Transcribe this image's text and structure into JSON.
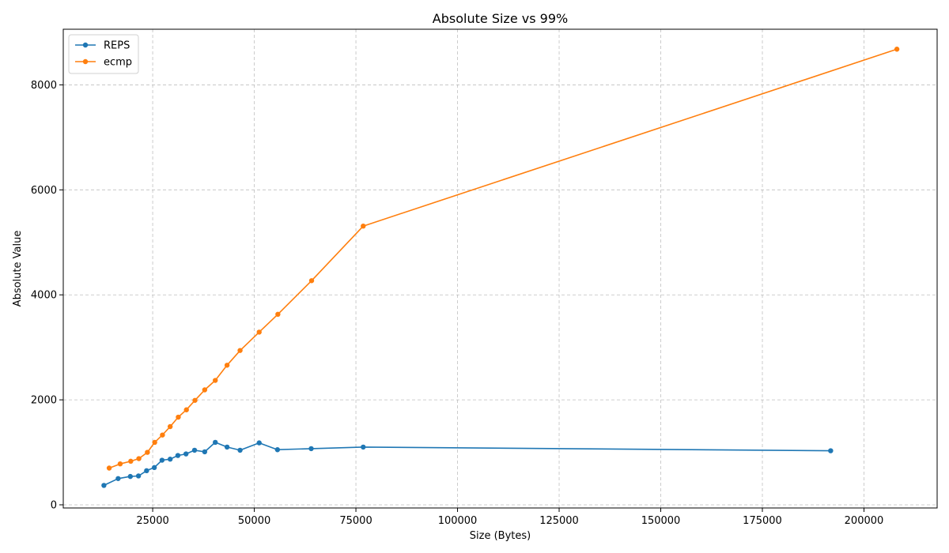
{
  "chart_data": {
    "type": "line",
    "title": "Absolute Size vs 99%",
    "xlabel": "Size (Bytes)",
    "ylabel": "Absolute Value",
    "xlim": [
      3000,
      218000
    ],
    "ylim": [
      -60,
      9060
    ],
    "xticks": [
      25000,
      50000,
      75000,
      100000,
      125000,
      150000,
      175000,
      200000
    ],
    "xtick_labels": [
      "25000",
      "50000",
      "75000",
      "100000",
      "125000",
      "150000",
      "175000",
      "200000"
    ],
    "yticks": [
      0,
      2000,
      4000,
      6000,
      8000
    ],
    "ytick_labels": [
      "0",
      "2000",
      "4000",
      "6000",
      "8000"
    ],
    "grid": true,
    "legend_position": "top-left",
    "series": [
      {
        "name": "REPS",
        "color": "#1f77b4",
        "x": [
          13000,
          16500,
          19500,
          21500,
          23500,
          25400,
          27300,
          29300,
          31200,
          33200,
          35300,
          37800,
          40400,
          43300,
          46500,
          51200,
          55700,
          64000,
          76800,
          191800
        ],
        "y": [
          370,
          500,
          540,
          550,
          650,
          710,
          850,
          870,
          940,
          970,
          1040,
          1010,
          1190,
          1100,
          1040,
          1180,
          1050,
          1070,
          1100,
          1030
        ]
      },
      {
        "name": "ecmp",
        "color": "#ff7f0e",
        "x": [
          14300,
          17000,
          19600,
          21600,
          23700,
          25500,
          27400,
          29300,
          31300,
          33300,
          35400,
          37800,
          40400,
          43300,
          46500,
          51200,
          55800,
          64100,
          76800,
          208100
        ],
        "y": [
          700,
          780,
          830,
          880,
          1000,
          1190,
          1330,
          1490,
          1670,
          1810,
          1990,
          2190,
          2370,
          2660,
          2940,
          3290,
          3630,
          4270,
          5310,
          8680
        ]
      }
    ]
  }
}
